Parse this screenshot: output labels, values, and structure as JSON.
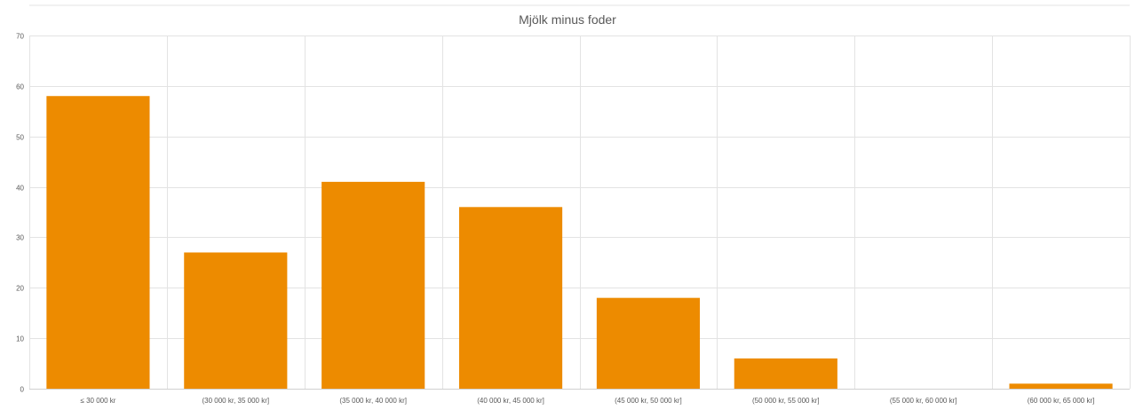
{
  "chart_data": {
    "type": "bar",
    "title": "Mjölk minus foder",
    "categories": [
      "≤ 30 000 kr",
      "(30 000 kr, 35 000 kr]",
      "(35 000 kr, 40 000 kr]",
      "(40 000 kr, 45 000 kr]",
      "(45 000 kr, 50 000 kr]",
      "(50 000 kr, 55 000 kr]",
      "(55 000 kr, 60 000 kr]",
      "(60 000 kr, 65 000 kr]"
    ],
    "values": [
      58,
      27,
      41,
      36,
      18,
      6,
      0,
      1
    ],
    "xlabel": "",
    "ylabel": "",
    "ylim": [
      0,
      70
    ],
    "yticks": [
      0,
      10,
      20,
      30,
      40,
      50,
      60,
      70
    ],
    "grid": true,
    "legend": "none",
    "bar_color": "#ED8B00",
    "grid_color": "#E3E3E3",
    "text_color": "#595959"
  }
}
